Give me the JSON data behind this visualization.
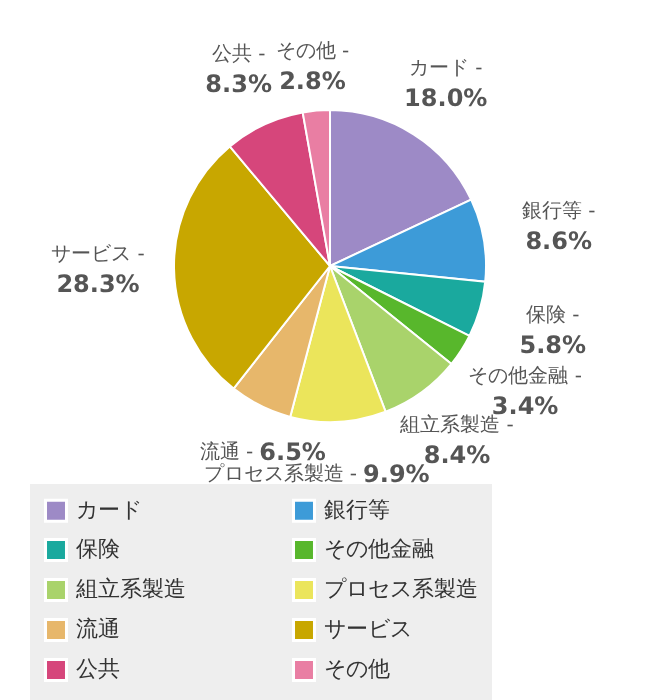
{
  "chart_data": {
    "type": "pie",
    "categories": [
      "カード",
      "銀行等",
      "保険",
      "その他金融",
      "組立系製造",
      "プロセス系製造",
      "流通",
      "サービス",
      "公共",
      "その他"
    ],
    "values": [
      18.0,
      8.6,
      5.8,
      3.4,
      8.4,
      9.9,
      6.5,
      28.3,
      8.3,
      2.8
    ],
    "colors": [
      "#9d8ac6",
      "#3d9bd8",
      "#1aa99e",
      "#58b72c",
      "#a9d36b",
      "#ebe55b",
      "#e7b76b",
      "#c8a700",
      "#d6467b",
      "#e97ea3"
    ],
    "value_labels": [
      "18.0%",
      "8.6%",
      "5.8%",
      "3.4%",
      "8.4%",
      "9.9%",
      "6.5%",
      "28.3%",
      "8.3%",
      "2.8%"
    ],
    "annotations": [
      "カード -",
      "銀行等 -",
      "保険 -",
      "その他金融 -",
      "組立系製造 -",
      "プロセス系製造 -",
      "流通 -",
      "サービス -",
      "公共 -",
      "その他 -"
    ],
    "legend": "bottom"
  }
}
